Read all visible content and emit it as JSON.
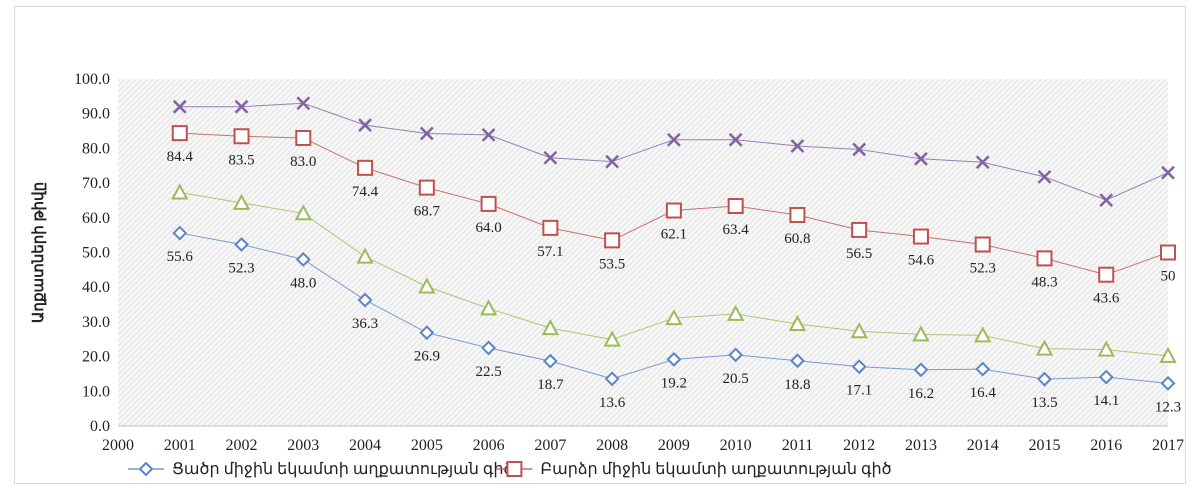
{
  "chart_data": {
    "type": "line",
    "x": [
      2000,
      2001,
      2002,
      2003,
      2004,
      2005,
      2006,
      2007,
      2008,
      2009,
      2010,
      2011,
      2012,
      2013,
      2014,
      2015,
      2016,
      2017
    ],
    "xlim": [
      2000,
      2017
    ],
    "ylim": [
      0,
      100
    ],
    "yticks": [
      "0.0",
      "10.0",
      "20.0",
      "30.0",
      "40.0",
      "50.0",
      "60.0",
      "70.0",
      "80.0",
      "90.0",
      "100.0"
    ],
    "ylabel": "Աղքատների թիվը",
    "xlabel": "",
    "title": "",
    "grid": false,
    "legend_position": "bottom",
    "series": [
      {
        "name": "Ցածր միջին եկամտի աղքատության գիծ",
        "marker": "diamond",
        "color": "#5b84c4",
        "x": [
          2001,
          2002,
          2003,
          2004,
          2005,
          2006,
          2007,
          2008,
          2009,
          2010,
          2011,
          2012,
          2013,
          2014,
          2015,
          2016,
          2017
        ],
        "values": [
          55.6,
          52.3,
          48.0,
          36.3,
          26.9,
          22.5,
          18.7,
          13.6,
          19.2,
          20.5,
          18.8,
          17.1,
          16.2,
          16.4,
          13.5,
          14.1,
          12.3
        ],
        "labels": [
          "55.6",
          "52.3",
          "48.0",
          "36.3",
          "26.9",
          "22.5",
          "18.7",
          "13.6",
          "19.2",
          "20.5",
          "18.8",
          "17.1",
          "16.2",
          "16.4",
          "13.5",
          "14.1",
          "12.3"
        ]
      },
      {
        "name": "Բարձր միջին եկամտի աղքատության գիծ",
        "marker": "square",
        "color": "#c0504d",
        "x": [
          2001,
          2002,
          2003,
          2004,
          2005,
          2006,
          2007,
          2008,
          2009,
          2010,
          2011,
          2012,
          2013,
          2014,
          2015,
          2016,
          2017
        ],
        "values": [
          84.4,
          83.5,
          83.0,
          74.4,
          68.7,
          64.0,
          57.1,
          53.5,
          62.1,
          63.4,
          60.8,
          56.5,
          54.6,
          52.3,
          48.3,
          43.6,
          50
        ],
        "labels": [
          "84.4",
          "83.5",
          "83.0",
          "74.4",
          "68.7",
          "64.0",
          "57.1",
          "53.5",
          "62.1",
          "63.4",
          "60.8",
          "56.5",
          "54.6",
          "52.3",
          "48.3",
          "43.6",
          "50"
        ]
      },
      {
        "name": "",
        "marker": "triangle",
        "color": "#9bbb59",
        "x": [
          2001,
          2002,
          2003,
          2004,
          2005,
          2006,
          2007,
          2008,
          2009,
          2010,
          2011,
          2012,
          2013,
          2014,
          2015,
          2016,
          2017
        ],
        "values": [
          67.3,
          64.3,
          61.3,
          48.8,
          40.2,
          33.9,
          28.2,
          24.9,
          31.1,
          32.3,
          29.4,
          27.3,
          26.4,
          26.1,
          22.3,
          22.0,
          20.2
        ],
        "labels": []
      },
      {
        "name": "",
        "marker": "x",
        "color": "#8064a2",
        "x": [
          2001,
          2002,
          2003,
          2004,
          2005,
          2006,
          2007,
          2008,
          2009,
          2010,
          2011,
          2012,
          2013,
          2014,
          2015,
          2016,
          2017
        ],
        "values": [
          92.0,
          92.0,
          93.0,
          86.7,
          84.3,
          83.9,
          77.3,
          76.2,
          82.5,
          82.5,
          80.7,
          79.7,
          77.0,
          76.0,
          71.8,
          65.1,
          73.0
        ],
        "labels": []
      }
    ]
  }
}
